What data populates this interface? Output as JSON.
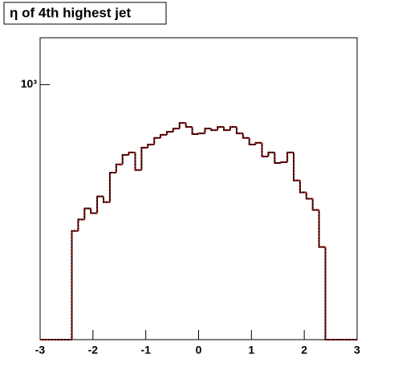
{
  "chart_data": {
    "type": "histogram",
    "title": "η of 4th highest jet",
    "bins": [
      -3,
      -2.88,
      -2.76,
      -2.64,
      -2.52,
      -2.4,
      -2.28,
      -2.16,
      -2.04,
      -1.92,
      -1.8,
      -1.68,
      -1.56,
      -1.44,
      -1.32,
      -1.2,
      -1.08,
      -0.96,
      -0.84,
      -0.72,
      -0.6,
      -0.48,
      -0.36,
      -0.24,
      -0.12,
      0,
      0.12,
      0.24,
      0.36,
      0.48,
      0.6,
      0.72,
      0.84,
      0.96,
      1.08,
      1.2,
      1.32,
      1.44,
      1.56,
      1.68,
      1.8,
      1.92,
      2.04,
      2.16,
      2.28,
      2.4,
      2.52,
      2.64,
      2.76,
      2.88,
      3
    ],
    "values": [
      0,
      0,
      0,
      0,
      0,
      441,
      470,
      500,
      487,
      535,
      518,
      611,
      640,
      675,
      684,
      620,
      703,
      715,
      742,
      755,
      768,
      782,
      807,
      789,
      758,
      761,
      782,
      775,
      789,
      775,
      789,
      761,
      742,
      715,
      722,
      669,
      684,
      645,
      648,
      684,
      585,
      547,
      528,
      496,
      403,
      0,
      0,
      0,
      0,
      0
    ],
    "color": "#cc0000",
    "edge_color": "#000000",
    "xlim": [
      -3,
      3
    ],
    "xticks": [
      -3,
      -2,
      -1,
      0,
      1,
      2,
      3
    ],
    "ylim": [
      240,
      1300
    ],
    "yticks": [
      {
        "value": 1000,
        "label": "10³"
      }
    ],
    "log_y": true
  }
}
